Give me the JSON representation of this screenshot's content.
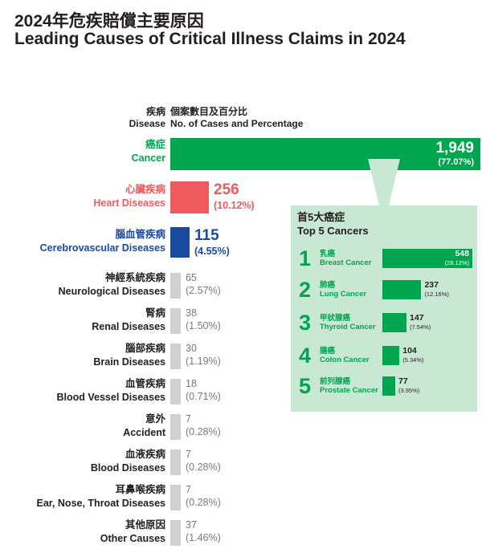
{
  "title": {
    "zh": "2024年危疾賠償主要原因",
    "en": "Leading Causes of Critical Illness Claims in 2024"
  },
  "headers": {
    "disease_zh": "疾病",
    "disease_en": "Disease",
    "cases_zh": "個案數目及百分比",
    "cases_en": "No. of Cases and Percentage"
  },
  "colors": {
    "cancer": "#00a54f",
    "heart": "#ef5a5f",
    "cerebro": "#1a4aa0",
    "other": "#cfd0d2",
    "panel": "#c9e8d3"
  },
  "chart_data": [
    {
      "type": "bar",
      "orientation": "horizontal",
      "categories": [
        {
          "zh": "癌症",
          "en": "Cancer"
        },
        {
          "zh": "心臟疾病",
          "en": "Heart Diseases"
        },
        {
          "zh": "腦血管疾病",
          "en": "Cerebrovascular Diseases"
        },
        {
          "zh": "神經系統疾病",
          "en": "Neurological Diseases"
        },
        {
          "zh": "腎病",
          "en": "Renal Diseases"
        },
        {
          "zh": "腦部疾病",
          "en": "Brain Diseases"
        },
        {
          "zh": "血管疾病",
          "en": "Blood Vessel Diseases"
        },
        {
          "zh": "意外",
          "en": "Accident"
        },
        {
          "zh": "血液疾病",
          "en": "Blood Diseases"
        },
        {
          "zh": "耳鼻喉疾病",
          "en": "Ear, Nose, Throat Diseases"
        },
        {
          "zh": "其他原因",
          "en": "Other Causes"
        }
      ],
      "values": [
        1949,
        256,
        115,
        65,
        38,
        30,
        18,
        7,
        7,
        7,
        37
      ],
      "value_labels": [
        "1,949",
        "256",
        "115",
        "65",
        "38",
        "30",
        "18",
        "7",
        "7",
        "7",
        "37"
      ],
      "percent_labels": [
        "(77.07%)",
        "(10.12%)",
        "(4.55%)",
        "(2.57%)",
        "(1.50%)",
        "(1.19%)",
        "(0.71%)",
        "(0.28%)",
        "(0.28%)",
        "(0.28%)",
        "(1.46%)"
      ]
    },
    {
      "type": "bar",
      "orientation": "horizontal",
      "title_zh": "首5大癌症",
      "title_en": "Top 5 Cancers",
      "ranks": [
        "1",
        "2",
        "3",
        "4",
        "5"
      ],
      "categories": [
        {
          "zh": "乳癌",
          "en": "Breast Cancer"
        },
        {
          "zh": "肺癌",
          "en": "Lung Cancer"
        },
        {
          "zh": "甲狀腺癌",
          "en": "Thyroid Cancer"
        },
        {
          "zh": "腸癌",
          "en": "Colon Cancer"
        },
        {
          "zh": "前列腺癌",
          "en": "Prostate Cancer"
        }
      ],
      "values": [
        548,
        237,
        147,
        104,
        77
      ],
      "percent_labels": [
        "(28.12%)",
        "(12.16%)",
        "(7.54%)",
        "(5.34%)",
        "(3.95%)"
      ]
    }
  ]
}
